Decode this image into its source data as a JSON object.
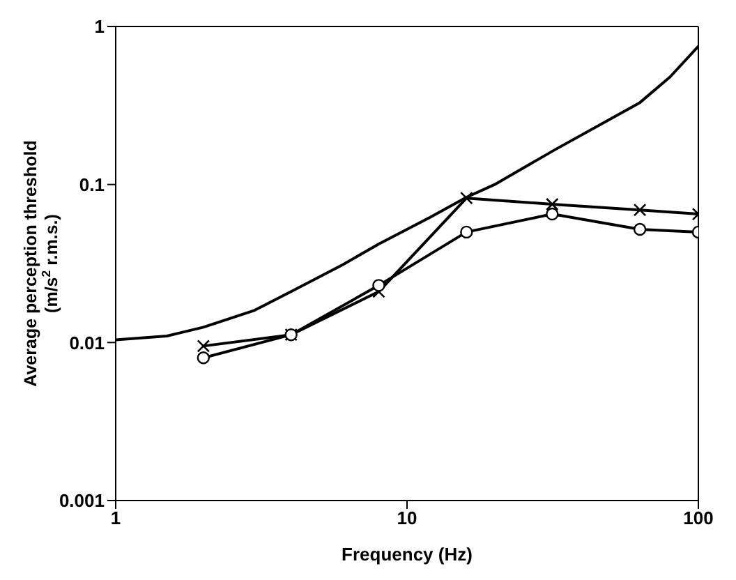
{
  "chart_data": {
    "type": "line",
    "xlabel": "Frequency (Hz)",
    "ylabel": "Average perception threshold\n(m/s$^{2}$ r.m.s.)",
    "log": "xy",
    "line_style": "solid",
    "xlim": [
      1,
      100
    ],
    "xticks": [
      1,
      10,
      100
    ],
    "ylim": [
      0.001,
      1
    ],
    "yticks": [
      0.001,
      0.01,
      0.1,
      1
    ],
    "series": [
      {
        "color": "#000000",
        "marker": "none",
        "x": [
          1,
          1.5,
          2,
          3,
          4,
          6,
          8,
          12,
          16,
          20,
          32,
          50,
          63,
          80,
          100
        ],
        "values": [
          0.0104,
          0.011,
          0.0125,
          0.016,
          0.021,
          0.031,
          0.042,
          0.062,
          0.083,
          0.1,
          0.165,
          0.26,
          0.33,
          0.48,
          0.75
        ]
      },
      {
        "color": "#000000",
        "marker": "cross",
        "x": [
          2,
          4,
          8,
          16,
          31.5,
          63,
          100
        ],
        "values": [
          0.0095,
          0.0112,
          0.021,
          0.082,
          0.075,
          0.069,
          0.065
        ]
      },
      {
        "color": "#000000",
        "marker": "circle",
        "x": [
          2,
          4,
          8,
          16,
          31.5,
          63,
          100
        ],
        "values": [
          0.008,
          0.0112,
          0.023,
          0.05,
          0.065,
          0.052,
          0.05
        ]
      }
    ]
  }
}
